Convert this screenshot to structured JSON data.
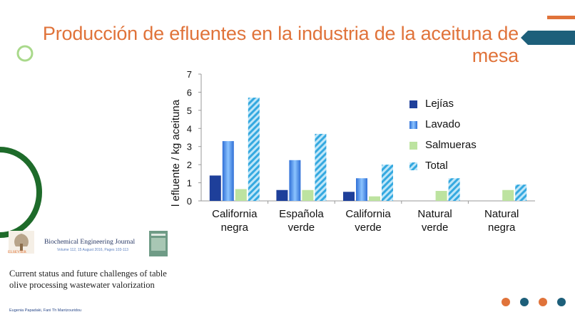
{
  "slide": {
    "title_line1": "Producción de efluentes en la industria de la aceituna de",
    "title_line2": "mesa"
  },
  "colors": {
    "accent_orange": "#e0733a",
    "accent_teal": "#1d5f7a",
    "green_ring": "#a9d98b",
    "dark_green_arc": "#1e6b2a",
    "lejias": "#1e3f9a",
    "lavado": "#5aa0f0",
    "salmueras": "#bde3a0",
    "total": "#35a9e0"
  },
  "chart_data": {
    "type": "bar",
    "title": "",
    "xlabel": "",
    "ylabel": "l efluente / kg aceituna",
    "ylim": [
      0,
      7
    ],
    "yticks": [
      "0",
      "1",
      "2",
      "3",
      "4",
      "5",
      "6",
      "7"
    ],
    "categories": [
      [
        "California",
        "negra"
      ],
      [
        "Española",
        "verde"
      ],
      [
        "California",
        "verde"
      ],
      [
        "Natural",
        "verde"
      ],
      [
        "Natural",
        "negra"
      ]
    ],
    "series": [
      {
        "name": "Lejías",
        "key": "lejias",
        "values": [
          1.4,
          0.6,
          0.5,
          null,
          null
        ]
      },
      {
        "name": "Lavado",
        "key": "lavado",
        "values": [
          3.3,
          2.25,
          1.25,
          null,
          null
        ]
      },
      {
        "name": "Salmueras",
        "key": "salmueras",
        "values": [
          0.65,
          0.6,
          0.25,
          0.55,
          0.6
        ]
      },
      {
        "name": "Total",
        "key": "total",
        "values": [
          5.7,
          3.7,
          2.0,
          1.25,
          0.9
        ]
      }
    ],
    "legend_position": "right"
  },
  "reference": {
    "journal": "Biochemical Engineering Journal",
    "volume": "Volume 112, 15 August 2016, Pages 103-113",
    "publisher": "ELSEVIER",
    "title": "Current status and future challenges of table olive processing wastewater valorization",
    "authors": "Eugenia Papadaki, Fani Th Mantzouridou"
  }
}
